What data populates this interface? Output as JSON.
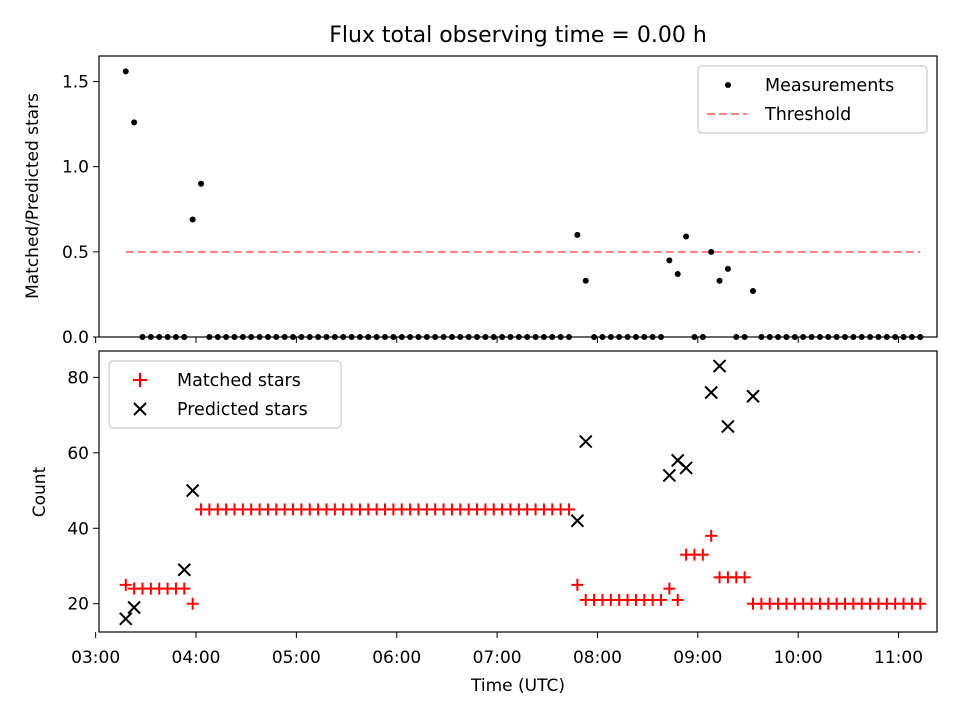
{
  "title": "Flux total observing time = 0.00 h",
  "colors": {
    "measurements": "#000000",
    "threshold": "#ff7f7f",
    "matched": "#ff0000",
    "predicted": "#000000"
  },
  "chart_data": [
    {
      "type": "scatter",
      "panel": "top",
      "title": "Flux total observing time = 0.00 h",
      "xlabel": "",
      "ylabel": "Matched/Predicted stars",
      "ylim": [
        0,
        1.65
      ],
      "yticks": [
        "0.0",
        "0.5",
        "1.0",
        "1.5"
      ],
      "ytick_values": [
        0,
        0.5,
        1.0,
        1.5
      ],
      "legend": {
        "placement": "upper right",
        "entries": [
          "Measurements",
          "Threshold"
        ]
      },
      "series": [
        {
          "name": "Measurements",
          "marker": "dot",
          "x": [
            "03:18",
            "03:23",
            "03:28",
            "03:33",
            "03:38",
            "03:43",
            "03:48",
            "03:53",
            "03:58",
            "04:03",
            "04:08",
            "04:13",
            "04:18",
            "04:23",
            "04:28",
            "04:33",
            "04:38",
            "04:43",
            "04:48",
            "04:53",
            "04:58",
            "05:03",
            "05:08",
            "05:13",
            "05:18",
            "05:23",
            "05:28",
            "05:33",
            "05:38",
            "05:43",
            "05:48",
            "05:53",
            "05:58",
            "06:03",
            "06:08",
            "06:13",
            "06:18",
            "06:23",
            "06:28",
            "06:33",
            "06:38",
            "06:43",
            "06:48",
            "06:53",
            "06:58",
            "07:03",
            "07:08",
            "07:13",
            "07:18",
            "07:23",
            "07:28",
            "07:33",
            "07:38",
            "07:43",
            "07:48",
            "07:53",
            "07:58",
            "08:03",
            "08:08",
            "08:13",
            "08:18",
            "08:23",
            "08:28",
            "08:33",
            "08:38",
            "08:43",
            "08:48",
            "08:53",
            "08:58",
            "09:03",
            "09:08",
            "09:13",
            "09:18",
            "09:23",
            "09:28",
            "09:33",
            "09:38",
            "09:43",
            "09:48",
            "09:53",
            "09:58",
            "10:03",
            "10:08",
            "10:13",
            "10:18",
            "10:23",
            "10:28",
            "10:33",
            "10:38",
            "10:43",
            "10:48",
            "10:53",
            "10:58",
            "11:03",
            "11:08",
            "11:13"
          ],
          "y": [
            1.56,
            1.26,
            0,
            0,
            0,
            0,
            0,
            0,
            0.69,
            0.9,
            0,
            0,
            0,
            0,
            0,
            0,
            0,
            0,
            0,
            0,
            0,
            0,
            0,
            0,
            0,
            0,
            0,
            0,
            0,
            0,
            0,
            0,
            0,
            0,
            0,
            0,
            0,
            0,
            0,
            0,
            0,
            0,
            0,
            0,
            0,
            0,
            0,
            0,
            0,
            0,
            0,
            0,
            0,
            0,
            0.6,
            0.33,
            0,
            0,
            0,
            0,
            0,
            0,
            0,
            0,
            0,
            0.45,
            0.37,
            0.59,
            0,
            0,
            0.5,
            0.33,
            0.4,
            0,
            0,
            0.27,
            0,
            0,
            0,
            0,
            0,
            0,
            0,
            0,
            0,
            0,
            0,
            0,
            0,
            0,
            0,
            0,
            0,
            0,
            0,
            0
          ]
        },
        {
          "name": "Threshold",
          "marker": "dashed-line",
          "x": [
            "03:18",
            "11:13"
          ],
          "y": [
            0.5,
            0.5
          ]
        }
      ]
    },
    {
      "type": "scatter",
      "panel": "bottom",
      "xlabel": "Time (UTC)",
      "ylabel": "Count",
      "ylim": [
        12.5,
        87
      ],
      "yticks": [
        "20",
        "40",
        "60",
        "80"
      ],
      "ytick_values": [
        20,
        40,
        60,
        80
      ],
      "xlim": [
        "03:02",
        "11:23"
      ],
      "xticks": [
        "03:00",
        "04:00",
        "05:00",
        "06:00",
        "07:00",
        "08:00",
        "09:00",
        "10:00",
        "11:00"
      ],
      "legend": {
        "placement": "upper left",
        "entries": [
          "Matched stars",
          "Predicted stars"
        ]
      },
      "series": [
        {
          "name": "Matched stars",
          "marker": "plus",
          "x": [
            "03:18",
            "03:23",
            "03:28",
            "03:33",
            "03:38",
            "03:43",
            "03:48",
            "03:53",
            "03:58",
            "04:03",
            "04:08",
            "04:13",
            "04:18",
            "04:23",
            "04:28",
            "04:33",
            "04:38",
            "04:43",
            "04:48",
            "04:53",
            "04:58",
            "05:03",
            "05:08",
            "05:13",
            "05:18",
            "05:23",
            "05:28",
            "05:33",
            "05:38",
            "05:43",
            "05:48",
            "05:53",
            "05:58",
            "06:03",
            "06:08",
            "06:13",
            "06:18",
            "06:23",
            "06:28",
            "06:33",
            "06:38",
            "06:43",
            "06:48",
            "06:53",
            "06:58",
            "07:03",
            "07:08",
            "07:13",
            "07:18",
            "07:23",
            "07:28",
            "07:33",
            "07:38",
            "07:43",
            "07:48",
            "07:53",
            "07:58",
            "08:03",
            "08:08",
            "08:13",
            "08:18",
            "08:23",
            "08:28",
            "08:33",
            "08:38",
            "08:43",
            "08:48",
            "08:53",
            "08:58",
            "09:03",
            "09:08",
            "09:13",
            "09:18",
            "09:23",
            "09:28",
            "09:33",
            "09:38",
            "09:43",
            "09:48",
            "09:53",
            "09:58",
            "10:03",
            "10:08",
            "10:13",
            "10:18",
            "10:23",
            "10:28",
            "10:33",
            "10:38",
            "10:43",
            "10:48",
            "10:53",
            "10:58",
            "11:03",
            "11:08",
            "11:13"
          ],
          "y": [
            25,
            24,
            24,
            24,
            24,
            24,
            24,
            24,
            20,
            45,
            45,
            45,
            45,
            45,
            45,
            45,
            45,
            45,
            45,
            45,
            45,
            45,
            45,
            45,
            45,
            45,
            45,
            45,
            45,
            45,
            45,
            45,
            45,
            45,
            45,
            45,
            45,
            45,
            45,
            45,
            45,
            45,
            45,
            45,
            45,
            45,
            45,
            45,
            45,
            45,
            45,
            45,
            45,
            45,
            25,
            21,
            21,
            21,
            21,
            21,
            21,
            21,
            21,
            21,
            21,
            24,
            21,
            33,
            33,
            33,
            38,
            27,
            27,
            27,
            27,
            20,
            20,
            20,
            20,
            20,
            20,
            20,
            20,
            20,
            20,
            20,
            20,
            20,
            20,
            20,
            20,
            20,
            20,
            20,
            20,
            20
          ]
        },
        {
          "name": "Predicted stars",
          "marker": "x",
          "x": [
            "03:18",
            "03:23",
            "03:53",
            "03:58",
            "07:48",
            "07:53",
            "08:43",
            "08:48",
            "08:53",
            "09:08",
            "09:13",
            "09:18",
            "09:33"
          ],
          "y": [
            16,
            19,
            29,
            50,
            42,
            63,
            54,
            58,
            56,
            76,
            83,
            67,
            75
          ]
        }
      ]
    }
  ]
}
